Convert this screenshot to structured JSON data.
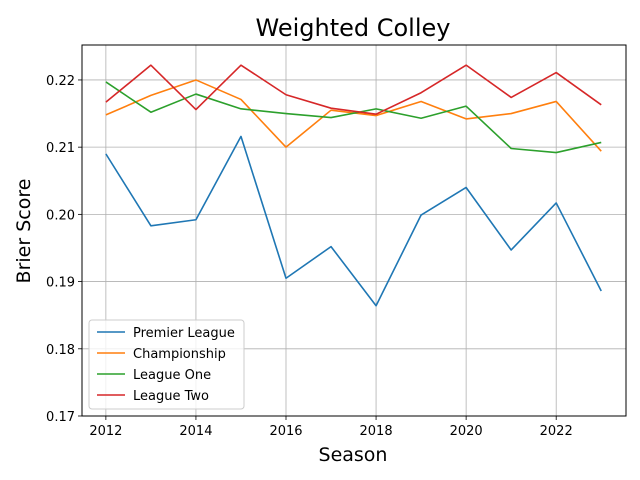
{
  "chart_data": {
    "type": "line",
    "title": "Weighted Colley",
    "xlabel": "Season",
    "ylabel": "Brier Score",
    "x": [
      2012,
      2013,
      2014,
      2015,
      2016,
      2017,
      2018,
      2019,
      2020,
      2021,
      2022,
      2023
    ],
    "xlim": [
      2011.47,
      2023.55
    ],
    "ylim": [
      0.17,
      0.2252
    ],
    "xticks": [
      2012,
      2014,
      2016,
      2018,
      2020,
      2022
    ],
    "xtick_labels": [
      "2012",
      "2014",
      "2016",
      "2018",
      "2020",
      "2022"
    ],
    "yticks": [
      0.17,
      0.18,
      0.19,
      0.2,
      0.21,
      0.22
    ],
    "ytick_labels": [
      "0.17",
      "0.18",
      "0.19",
      "0.20",
      "0.21",
      "0.22"
    ],
    "grid": true,
    "legend_position": "lower-left",
    "series": [
      {
        "name": "Premier League",
        "color": "#1f77b4",
        "values": [
          0.209,
          0.1983,
          0.1992,
          0.2116,
          0.1905,
          0.1952,
          0.1864,
          0.1999,
          0.204,
          0.1947,
          0.2017,
          0.1886
        ]
      },
      {
        "name": "Championship",
        "color": "#ff7f0e",
        "values": [
          0.2148,
          0.2177,
          0.22,
          0.2171,
          0.21,
          0.2155,
          0.2147,
          0.2168,
          0.2142,
          0.215,
          0.2168,
          0.2094
        ]
      },
      {
        "name": "League One",
        "color": "#2ca02c",
        "values": [
          0.2197,
          0.2152,
          0.2179,
          0.2157,
          0.215,
          0.2144,
          0.2157,
          0.2143,
          0.2161,
          0.2098,
          0.2092,
          0.2107
        ]
      },
      {
        "name": "League Two",
        "color": "#d62728",
        "values": [
          0.2167,
          0.2222,
          0.2156,
          0.2222,
          0.2178,
          0.2158,
          0.2149,
          0.2181,
          0.2222,
          0.2174,
          0.2211,
          0.2163
        ]
      }
    ]
  }
}
